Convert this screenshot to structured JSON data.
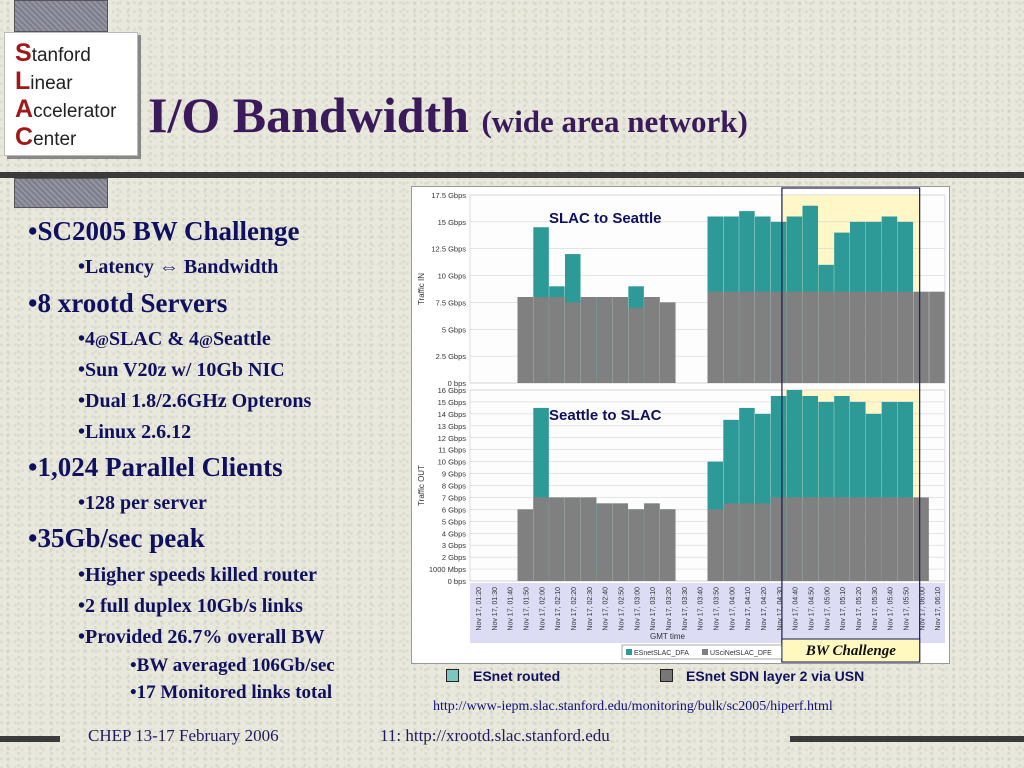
{
  "logo": {
    "lines": [
      {
        "cap": "S",
        "rest": "tanford"
      },
      {
        "cap": "L",
        "rest": "inear"
      },
      {
        "cap": "A",
        "rest": "ccelerator"
      },
      {
        "cap": "C",
        "rest": "enter"
      }
    ]
  },
  "title": {
    "main": "I/O Bandwidth",
    "sub": "(wide area network)"
  },
  "bullets": {
    "b1": "SC2005 BW Challenge",
    "b1_1a": "Latency ",
    "b1_1b": " Bandwidth",
    "b2": "8 xrootd Servers",
    "b2_1a": "4",
    "b2_1b": "@",
    "b2_1c": "SLAC & 4",
    "b2_1d": "@",
    "b2_1e": "Seattle",
    "b2_2": "Sun V20z w/ 10Gb NIC",
    "b2_3": "Dual 1.8/2.6GHz Opterons",
    "b2_4": "Linux 2.6.12",
    "b3": "1,024 Parallel Clients",
    "b3_1": "128 per server",
    "b4": "35Gb/sec peak",
    "b4_1": "Higher speeds killed router",
    "b4_2": "2 full duplex 10Gb/s links",
    "b4_3": "Provided 26.7% overall BW",
    "b4_3_1": "BW averaged 106Gb/sec",
    "b4_3_2": "17 Monitored links total"
  },
  "chart_data": {
    "type": "area",
    "x_label": "GMT time",
    "x_ticks": [
      "Nov 17, 01:20",
      "Nov 17, 01:30",
      "Nov 17, 01:40",
      "Nov 17, 01:50",
      "Nov 17, 02:00",
      "Nov 17, 02:10",
      "Nov 17, 02:20",
      "Nov 17, 02:30",
      "Nov 17, 02:40",
      "Nov 17, 02:50",
      "Nov 17, 03:00",
      "Nov 17, 03:10",
      "Nov 17, 03:20",
      "Nov 17, 03:30",
      "Nov 17, 03:40",
      "Nov 17, 03:50",
      "Nov 17, 04:00",
      "Nov 17, 04:10",
      "Nov 17, 04:20",
      "Nov 17, 04:30",
      "Nov 17, 04:40",
      "Nov 17, 04:50",
      "Nov 17, 05:00",
      "Nov 17, 05:10",
      "Nov 17, 05:20",
      "Nov 17, 05:30",
      "Nov 17, 05:40",
      "Nov 17, 05:50",
      "Nov 17, 06:00",
      "Nov 17, 06:10"
    ],
    "panels": [
      {
        "name": "SLAC to Seattle",
        "y_label": "Traffic IN",
        "y_ticks": [
          "0 bps",
          "2.5 Gbps",
          "5 Gbps",
          "7.5 Gbps",
          "10 Gbps",
          "12.5 Gbps",
          "15 Gbps",
          "17.5 Gbps"
        ],
        "y_max": 17.5,
        "series": [
          {
            "name": "ESnet routed",
            "color": "#2e9a98",
            "values": [
              0,
              0,
              0,
              8,
              14.5,
              9,
              12,
              8,
              8,
              8,
              9,
              8,
              7.5,
              0,
              0,
              15.5,
              15.5,
              16,
              15.5,
              15,
              15.5,
              16.5,
              11,
              14,
              15,
              15,
              15.5,
              15,
              0,
              0
            ]
          },
          {
            "name": "ESnet SDN layer 2 via USN",
            "color": "#808080",
            "values": [
              0,
              0,
              0,
              8,
              8,
              8,
              7.5,
              8,
              8,
              8,
              7,
              8,
              7.5,
              0,
              0,
              8.5,
              8.5,
              8.5,
              8.5,
              8.5,
              8.5,
              8.5,
              8.5,
              8.5,
              8.5,
              8.5,
              8.5,
              8.5,
              8.5,
              8.5
            ]
          }
        ]
      },
      {
        "name": "Seattle to SLAC",
        "y_label": "Traffic OUT",
        "y_ticks": [
          "0 bps",
          "1000 Mbps",
          "2 Gbps",
          "3 Gbps",
          "4 Gbps",
          "5 Gbps",
          "6 Gbps",
          "7 Gbps",
          "8 Gbps",
          "9 Gbps",
          "10 Gbps",
          "11 Gbps",
          "12 Gbps",
          "13 Gbps",
          "14 Gbps",
          "15 Gbps",
          "16 Gbps"
        ],
        "y_max": 16,
        "series": [
          {
            "name": "ESnet routed",
            "color": "#2e9a98",
            "values": [
              0,
              0,
              0,
              0,
              14.5,
              7,
              7,
              7,
              6.5,
              6.5,
              6,
              6.5,
              6,
              0,
              0,
              10,
              13.5,
              14.5,
              14,
              15.5,
              16,
              15.5,
              15,
              15.5,
              15,
              14,
              15,
              15,
              0,
              0
            ]
          },
          {
            "name": "ESnet SDN layer 2 via USN",
            "color": "#808080",
            "values": [
              0,
              0,
              0,
              6,
              7,
              7,
              7,
              7,
              6.5,
              6.5,
              6,
              6.5,
              6,
              0,
              0,
              6,
              6.5,
              6.5,
              6.5,
              7,
              7,
              7,
              7,
              7,
              7,
              7,
              7,
              7,
              7,
              0
            ]
          }
        ]
      }
    ],
    "inner_legend": [
      "ESnetSLAC_DFA",
      "USciNetSLAC_DFE"
    ],
    "annotation": "BW Challenge",
    "legend": [
      "ESnet routed",
      "ESnet SDN layer 2 via USN"
    ],
    "colors": {
      "routed": "#2e9a98",
      "sdn": "#808080",
      "highlight": "#fff7c8"
    }
  },
  "url": "http://www-iepm.slac.stanford.edu/monitoring/bulk/sc2005/hiperf.html",
  "footer": {
    "left": "CHEP 13-17 February 2006",
    "right": "11: http://xrootd.slac.stanford.edu"
  }
}
